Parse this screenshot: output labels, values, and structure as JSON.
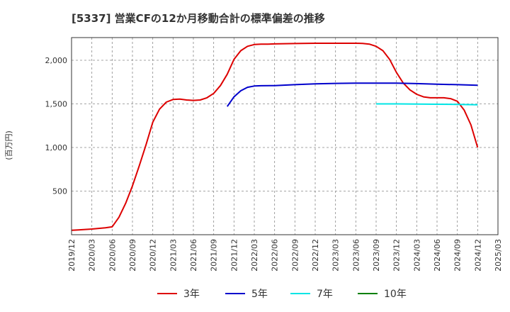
{
  "chart_data": {
    "type": "line",
    "title": "[5337]  営業CFの12か月移動合計の標準偏差の推移",
    "ylabel": "(百万円)",
    "xlabel": "",
    "ylim": [
      0,
      2260
    ],
    "yticks": [
      500,
      1000,
      1500,
      2000
    ],
    "ytick_labels": [
      "500",
      "1,000",
      "1,500",
      "2,000"
    ],
    "xlim": [
      "2019-12",
      "2025-03"
    ],
    "xticks": [
      "2019/12",
      "2020/03",
      "2020/06",
      "2020/09",
      "2020/12",
      "2021/03",
      "2021/06",
      "2021/09",
      "2021/12",
      "2022/03",
      "2022/06",
      "2022/09",
      "2022/12",
      "2023/03",
      "2023/06",
      "2023/09",
      "2023/12",
      "2024/03",
      "2024/06",
      "2024/09",
      "2024/12",
      "2025/03"
    ],
    "grid": true,
    "legend_position": "bottom",
    "series": [
      {
        "name": "3年",
        "color": "#dd0000",
        "points": [
          [
            "2019-12",
            50
          ],
          [
            "2020-01",
            55
          ],
          [
            "2020-02",
            60
          ],
          [
            "2020-03",
            65
          ],
          [
            "2020-04",
            72
          ],
          [
            "2020-05",
            80
          ],
          [
            "2020-06",
            90
          ],
          [
            "2020-07",
            200
          ],
          [
            "2020-08",
            360
          ],
          [
            "2020-09",
            560
          ],
          [
            "2020-10",
            790
          ],
          [
            "2020-11",
            1030
          ],
          [
            "2020-12",
            1290
          ],
          [
            "2021-01",
            1440
          ],
          [
            "2021-02",
            1520
          ],
          [
            "2021-03",
            1550
          ],
          [
            "2021-04",
            1555
          ],
          [
            "2021-05",
            1545
          ],
          [
            "2021-06",
            1540
          ],
          [
            "2021-07",
            1545
          ],
          [
            "2021-08",
            1570
          ],
          [
            "2021-09",
            1620
          ],
          [
            "2021-10",
            1710
          ],
          [
            "2021-11",
            1840
          ],
          [
            "2021-12",
            2010
          ],
          [
            "2022-01",
            2110
          ],
          [
            "2022-02",
            2160
          ],
          [
            "2022-03",
            2180
          ],
          [
            "2022-04",
            2185
          ],
          [
            "2022-05",
            2185
          ],
          [
            "2022-06",
            2188
          ],
          [
            "2022-09",
            2192
          ],
          [
            "2022-12",
            2195
          ],
          [
            "2023-03",
            2195
          ],
          [
            "2023-06",
            2195
          ],
          [
            "2023-07",
            2193
          ],
          [
            "2023-08",
            2185
          ],
          [
            "2023-09",
            2160
          ],
          [
            "2023-10",
            2110
          ],
          [
            "2023-11",
            2010
          ],
          [
            "2023-12",
            1860
          ],
          [
            "2024-01",
            1740
          ],
          [
            "2024-02",
            1660
          ],
          [
            "2024-03",
            1610
          ],
          [
            "2024-04",
            1580
          ],
          [
            "2024-05",
            1570
          ],
          [
            "2024-06",
            1570
          ],
          [
            "2024-07",
            1570
          ],
          [
            "2024-08",
            1560
          ],
          [
            "2024-09",
            1530
          ],
          [
            "2024-10",
            1430
          ],
          [
            "2024-11",
            1260
          ],
          [
            "2024-12",
            1000
          ]
        ]
      },
      {
        "name": "5年",
        "color": "#0000cc",
        "points": [
          [
            "2021-11",
            1470
          ],
          [
            "2021-12",
            1580
          ],
          [
            "2022-01",
            1650
          ],
          [
            "2022-02",
            1690
          ],
          [
            "2022-03",
            1705
          ],
          [
            "2022-04",
            1708
          ],
          [
            "2022-06",
            1710
          ],
          [
            "2022-09",
            1720
          ],
          [
            "2022-12",
            1730
          ],
          [
            "2023-03",
            1735
          ],
          [
            "2023-06",
            1737
          ],
          [
            "2023-09",
            1738
          ],
          [
            "2023-12",
            1737
          ],
          [
            "2024-03",
            1732
          ],
          [
            "2024-06",
            1725
          ],
          [
            "2024-09",
            1720
          ],
          [
            "2024-12",
            1714
          ]
        ]
      },
      {
        "name": "7年",
        "color": "#00e5e5",
        "points": [
          [
            "2023-09",
            1500
          ],
          [
            "2023-12",
            1500
          ],
          [
            "2024-03",
            1498
          ],
          [
            "2024-06",
            1496
          ],
          [
            "2024-09",
            1494
          ],
          [
            "2024-12",
            1490
          ]
        ]
      },
      {
        "name": "10年",
        "color": "#008000",
        "points": []
      }
    ]
  }
}
